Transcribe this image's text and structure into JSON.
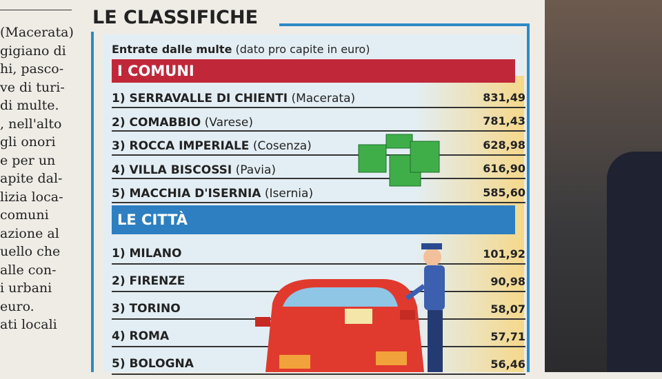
{
  "column_text": [
    "(Macerata)",
    "gigiano di",
    "hi, pasco-",
    "ve di turi-",
    "di multe.",
    ", nell'alto",
    "gli onori",
    "e per un",
    "apite dal-",
    "lizia loca-",
    "comuni",
    "azione al",
    "uello che",
    "alle con-",
    "i urbani",
    "euro.",
    "ati locali"
  ],
  "header": {
    "title": "LE CLASSIFICHE",
    "subtitle": "Entrate dalle multe",
    "subtitle_note": "(dato pro capite in euro)"
  },
  "sections": [
    {
      "title": "I COMUNI",
      "rows": [
        {
          "name": "1) SERRAVALLE DI CHIENTI",
          "province": "(Macerata)",
          "value": "831,49"
        },
        {
          "name": "2) COMABBIO",
          "province": "(Varese)",
          "value": "781,43"
        },
        {
          "name": "3) ROCCA IMPERIALE",
          "province": "(Cosenza)",
          "value": "628,98"
        },
        {
          "name": "4) VILLA BISCOSSI",
          "province": "(Pavia)",
          "value": "616,90"
        },
        {
          "name": "5) MACCHIA D'ISERNIA",
          "province": "(Isernia)",
          "value": "585,60"
        }
      ]
    },
    {
      "title": "LE CITTÀ",
      "rows": [
        {
          "name": "1) MILANO",
          "value": "101,92"
        },
        {
          "name": "2) FIRENZE",
          "value": "90,98"
        },
        {
          "name": "3) TORINO",
          "value": "58,07"
        },
        {
          "name": "4) ROMA",
          "value": "57,71"
        },
        {
          "name": "5) BOLOGNA",
          "value": "56,46"
        }
      ]
    }
  ]
}
